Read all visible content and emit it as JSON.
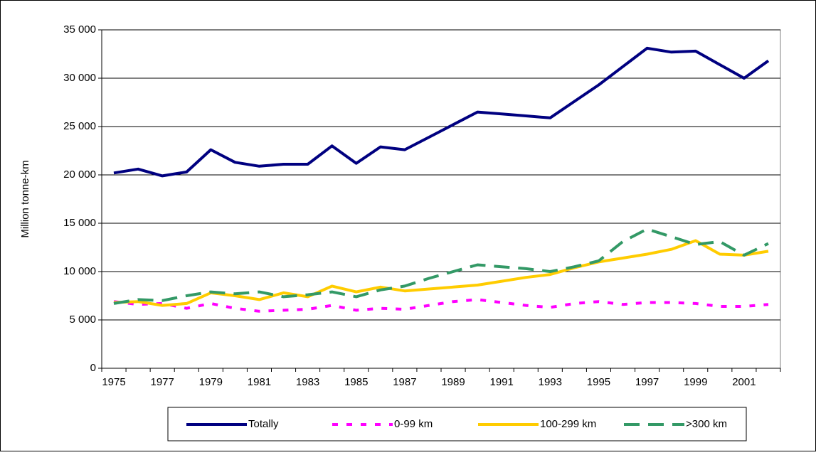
{
  "chart_data": {
    "type": "line",
    "y_label": "Million tonne-km",
    "categories": [
      "1975",
      null,
      "1977",
      null,
      "1979",
      null,
      "1981",
      null,
      "1983",
      null,
      "1985",
      null,
      "1987",
      null,
      "1989",
      null,
      "1991",
      null,
      "1993",
      null,
      "1995",
      null,
      "1997",
      null,
      "1999",
      null,
      "2001",
      null
    ],
    "series": [
      {
        "name": "Totally",
        "color": "#000080",
        "line_style": "solid",
        "values": [
          20200,
          20600,
          19900,
          20300,
          22600,
          21300,
          20900,
          21100,
          21100,
          23000,
          21200,
          22900,
          22600,
          23900,
          25200,
          26500,
          26300,
          26100,
          25900,
          27600,
          29300,
          31200,
          33100,
          32700,
          32800,
          31400,
          30000,
          31800
        ]
      },
      {
        "name": "0-99 km",
        "color": "#ff00ff",
        "line_style": "dashed",
        "values": [
          6900,
          6600,
          6700,
          6200,
          6700,
          6200,
          5900,
          6000,
          6100,
          6500,
          6000,
          6200,
          6100,
          6500,
          6900,
          7100,
          6800,
          6500,
          6300,
          6700,
          6900,
          6600,
          6800,
          6800,
          6700,
          6400,
          6400,
          6600
        ]
      },
      {
        "name": "100-299 km",
        "color": "#ffcc00",
        "line_style": "solid",
        "values": [
          6800,
          6900,
          6500,
          6700,
          7800,
          7500,
          7100,
          7800,
          7400,
          8500,
          7900,
          8400,
          8000,
          8200,
          8400,
          8600,
          9000,
          9400,
          9700,
          10400,
          11000,
          11400,
          11800,
          12300,
          13200,
          11800,
          11700,
          12100
        ]
      },
      {
        "name": ">300 km",
        "color": "#339966",
        "line_style": "long-dashed",
        "values": [
          6700,
          7100,
          7000,
          7500,
          7900,
          7700,
          7900,
          7400,
          7600,
          7900,
          7400,
          8100,
          8500,
          9300,
          10000,
          10700,
          10500,
          10300,
          10000,
          10500,
          11100,
          13100,
          14400,
          13600,
          12800,
          13100,
          11700,
          12900
        ]
      }
    ],
    "ylim": [
      0,
      35000
    ],
    "yticks": [
      0,
      {
        "value": 5000,
        "label": "5 000"
      },
      {
        "value": 10000,
        "label": "10 000"
      },
      {
        "value": 15000,
        "label": "15 000"
      },
      {
        "value": 20000,
        "label": "20 000"
      },
      {
        "value": 25000,
        "label": "25 000"
      },
      {
        "value": 30000,
        "label": "30 000"
      },
      {
        "value": 35000,
        "label": "35 000"
      }
    ],
    "grid": true
  }
}
